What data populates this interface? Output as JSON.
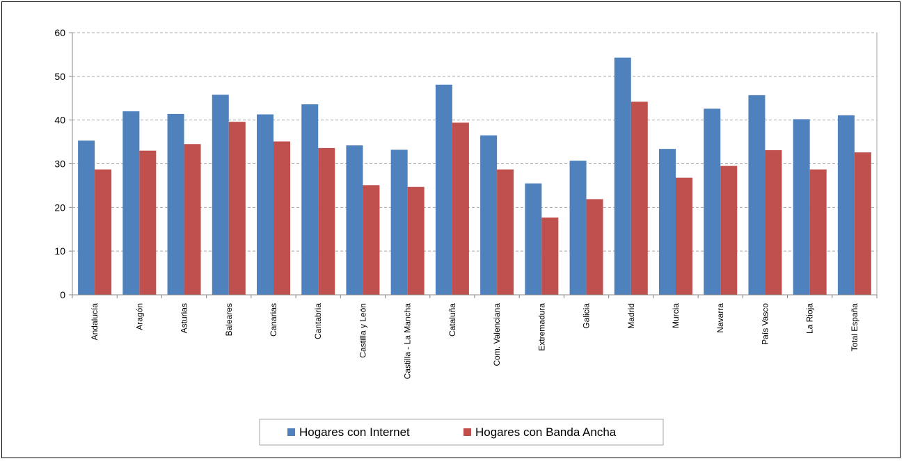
{
  "chart_data": {
    "type": "bar",
    "title": "",
    "xlabel": "",
    "ylabel": "",
    "ylim": [
      0,
      60
    ],
    "yticks": [
      0,
      10,
      20,
      30,
      40,
      50,
      60
    ],
    "grid": true,
    "legend_position": "bottom",
    "categories": [
      "Andalucía",
      "Aragón",
      "Asturias",
      "Baleares",
      "Canarias",
      "Cantabria",
      "Castilla y León",
      "Castilla - La Mancha",
      "Cataluña",
      "Com. Valenciana",
      "Extremadura",
      "Galicia",
      "Madrid",
      "Murcia",
      "Navarra",
      "País Vasco",
      "La Rioja",
      "Total España"
    ],
    "series": [
      {
        "name": "Hogares con Internet",
        "color": "#4F81BD",
        "values": [
          35.3,
          42.0,
          41.4,
          45.8,
          41.3,
          43.6,
          34.2,
          33.2,
          48.1,
          36.5,
          25.5,
          30.7,
          54.3,
          33.4,
          42.6,
          45.7,
          40.2,
          41.1
        ]
      },
      {
        "name": "Hogares con Banda Ancha",
        "color": "#C0504D",
        "values": [
          28.7,
          33.0,
          34.5,
          39.6,
          35.1,
          33.6,
          25.1,
          24.7,
          39.4,
          28.7,
          17.7,
          21.9,
          44.2,
          26.8,
          29.5,
          33.1,
          28.7,
          32.6
        ]
      }
    ]
  }
}
